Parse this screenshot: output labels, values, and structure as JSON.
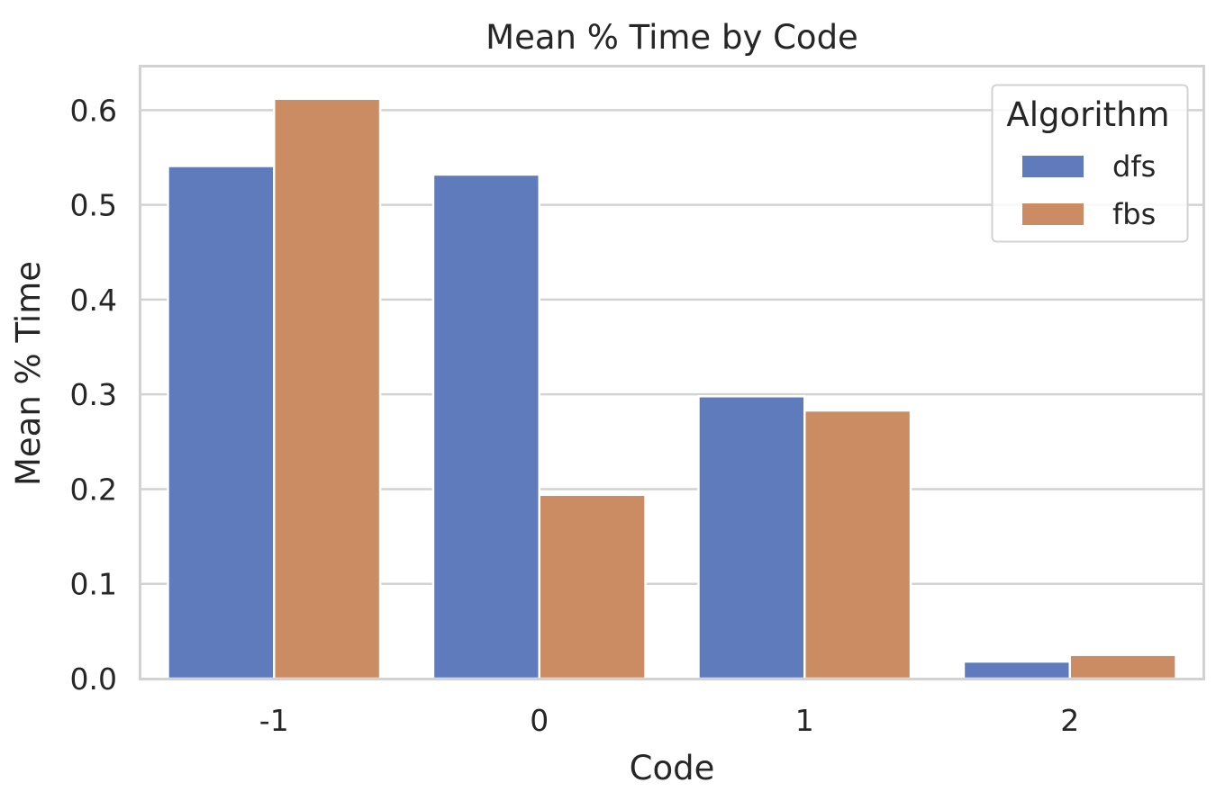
{
  "chart_data": {
    "type": "bar",
    "title": "Mean % Time by Code",
    "xlabel": "Code",
    "ylabel": "Mean % Time",
    "categories": [
      "-1",
      "0",
      "1",
      "2"
    ],
    "series": [
      {
        "name": "dfs",
        "color": "#5f7bbb",
        "values": [
          0.541,
          0.532,
          0.298,
          0.018
        ]
      },
      {
        "name": "fbs",
        "color": "#cc8c63",
        "values": [
          0.612,
          0.194,
          0.283,
          0.025
        ]
      }
    ],
    "ylim": [
      0,
      0.645
    ],
    "yticks": [
      "0.0",
      "0.1",
      "0.2",
      "0.3",
      "0.4",
      "0.5",
      "0.6"
    ],
    "grid": true,
    "legend": {
      "title": "Algorithm",
      "position": "top-right"
    }
  }
}
